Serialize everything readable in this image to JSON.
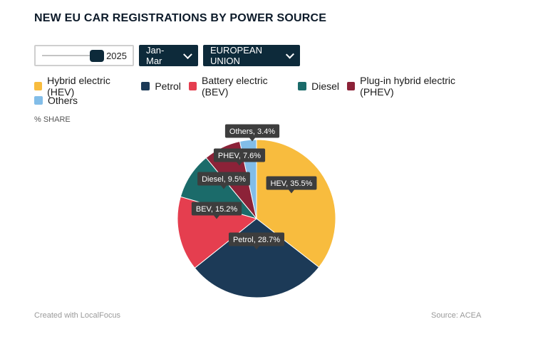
{
  "title": "NEW EU CAR REGISTRATIONS BY POWER SOURCE",
  "controls": {
    "year": "2025",
    "period_label": "Jan-Mar",
    "region_label": "EUROPEAN UNION"
  },
  "unit_label": "% SHARE",
  "footer": {
    "credit": "Created with LocalFocus",
    "source": "Source:  ACEA"
  },
  "chart_data": {
    "type": "pie",
    "title": "NEW EU CAR REGISTRATIONS BY POWER SOURCE",
    "unit": "% SHARE",
    "legend_position": "top-left",
    "slices": [
      {
        "name": "Hybrid electric (HEV)",
        "short": "HEV",
        "value": 35.5,
        "color": "#f8bc3e"
      },
      {
        "name": "Petrol",
        "short": "Petrol",
        "value": 28.7,
        "color": "#1c3a57"
      },
      {
        "name": "Battery electric (BEV)",
        "short": "BEV",
        "value": 15.2,
        "color": "#e53e4f"
      },
      {
        "name": "Diesel",
        "short": "Diesel",
        "value": 9.5,
        "color": "#1b6b6a"
      },
      {
        "name": "Plug-in hybrid electric (PHEV)",
        "short": "PHEV",
        "value": 7.6,
        "color": "#8c2238"
      },
      {
        "name": "Others",
        "short": "Others",
        "value": 3.4,
        "color": "#82bde8"
      }
    ],
    "data_labels": [
      "HEV, 35.5%",
      "Petrol, 28.7%",
      "BEV, 15.2%",
      "Diesel, 9.5%",
      "PHEV, 7.6%",
      "Others, 3.4%"
    ]
  }
}
